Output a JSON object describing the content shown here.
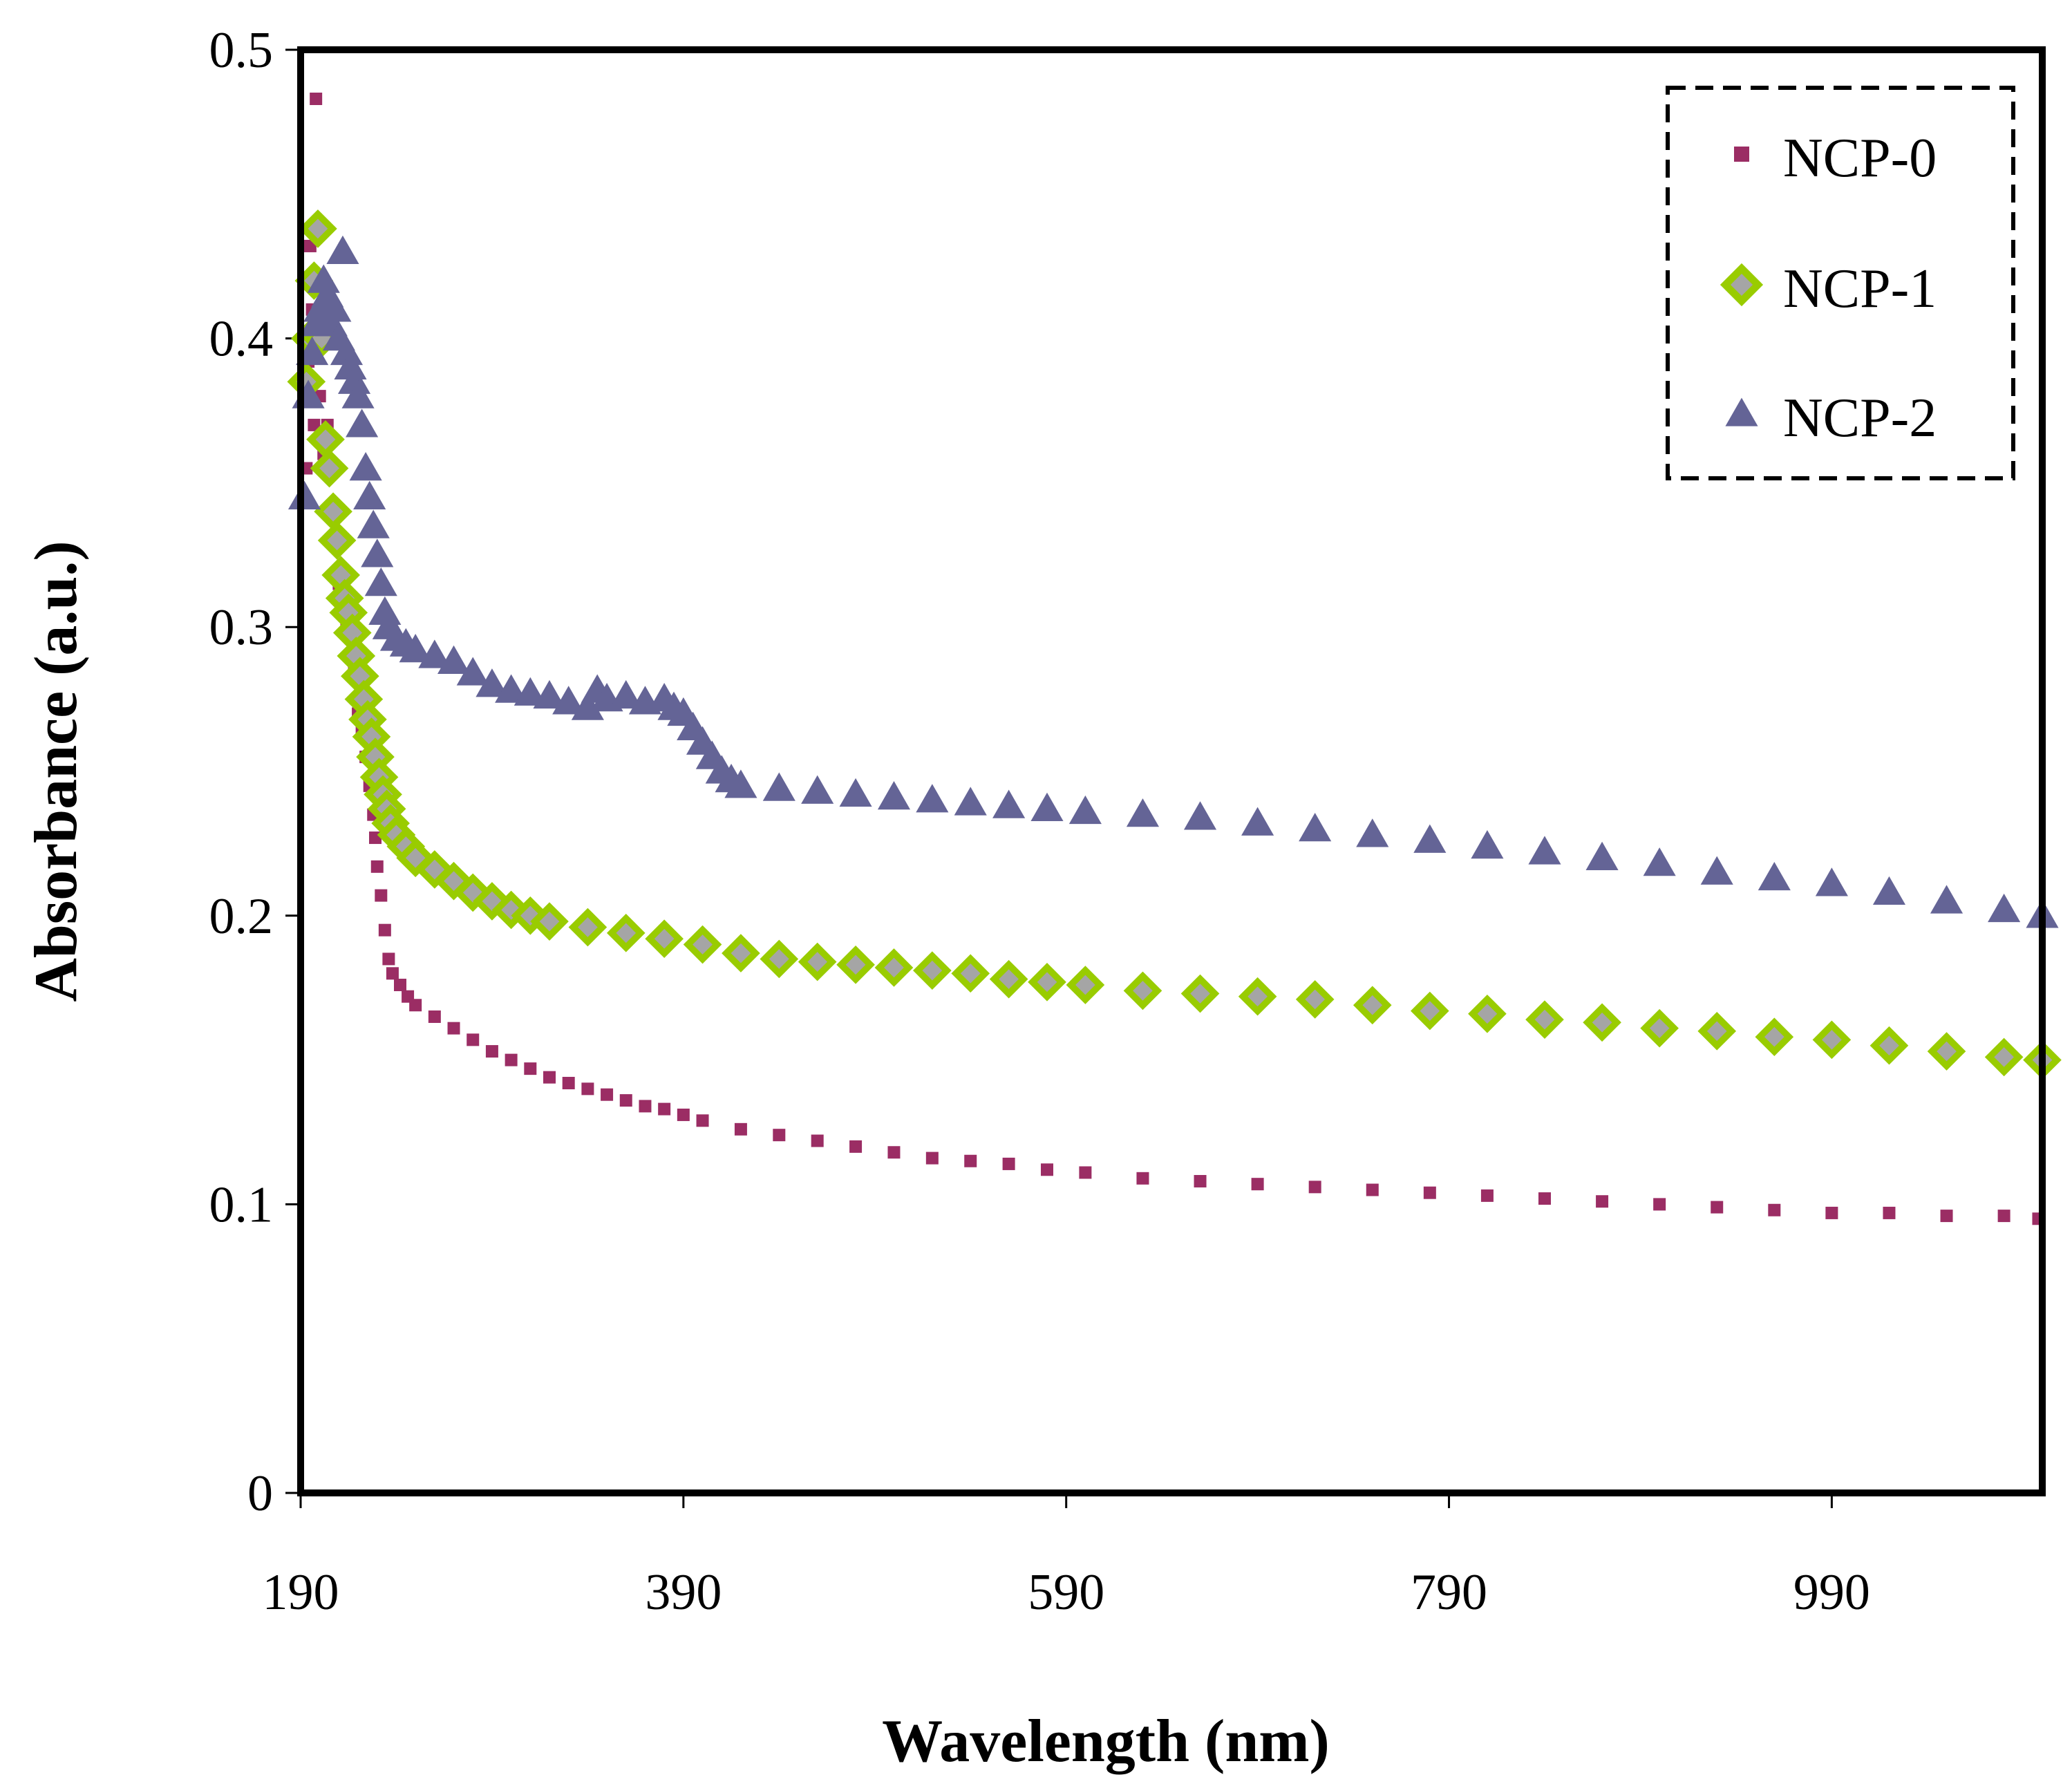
{
  "chart_data": {
    "type": "scatter",
    "title": "",
    "xlabel": "Wavelength (nm)",
    "ylabel": "Absorbance (a.u.)",
    "xlim": [
      190,
      1100
    ],
    "ylim": [
      0,
      0.5
    ],
    "xticks": [
      "190",
      "390",
      "590",
      "790",
      "990"
    ],
    "yticks": [
      "0",
      "0.1",
      "0.2",
      "0.3",
      "0.4",
      "0.5"
    ],
    "legend_position": "top-right",
    "series": [
      {
        "name": "NCP-0",
        "marker": "square",
        "color": "#9B2D64",
        "points": [
          [
            193,
            0.355
          ],
          [
            194,
            0.392
          ],
          [
            195,
            0.432
          ],
          [
            196,
            0.41
          ],
          [
            197,
            0.37
          ],
          [
            198,
            0.483
          ],
          [
            200,
            0.38
          ],
          [
            202,
            0.36
          ],
          [
            204,
            0.37
          ],
          [
            206,
            0.34
          ],
          [
            208,
            0.33
          ],
          [
            210,
            0.315
          ],
          [
            212,
            0.31
          ],
          [
            214,
            0.3
          ],
          [
            216,
            0.29
          ],
          [
            218,
            0.285
          ],
          [
            220,
            0.27
          ],
          [
            222,
            0.265
          ],
          [
            224,
            0.255
          ],
          [
            226,
            0.245
          ],
          [
            228,
            0.235
          ],
          [
            229,
            0.227
          ],
          [
            230,
            0.217
          ],
          [
            232,
            0.207
          ],
          [
            234,
            0.195
          ],
          [
            236,
            0.185
          ],
          [
            238,
            0.18
          ],
          [
            242,
            0.176
          ],
          [
            246,
            0.172
          ],
          [
            250,
            0.169
          ],
          [
            260,
            0.165
          ],
          [
            270,
            0.161
          ],
          [
            280,
            0.157
          ],
          [
            290,
            0.153
          ],
          [
            300,
            0.15
          ],
          [
            310,
            0.147
          ],
          [
            320,
            0.144
          ],
          [
            330,
            0.142
          ],
          [
            340,
            0.14
          ],
          [
            350,
            0.138
          ],
          [
            360,
            0.136
          ],
          [
            370,
            0.134
          ],
          [
            380,
            0.133
          ],
          [
            390,
            0.131
          ],
          [
            400,
            0.129
          ],
          [
            420,
            0.126
          ],
          [
            440,
            0.124
          ],
          [
            460,
            0.122
          ],
          [
            480,
            0.12
          ],
          [
            500,
            0.118
          ],
          [
            520,
            0.116
          ],
          [
            540,
            0.115
          ],
          [
            560,
            0.114
          ],
          [
            580,
            0.112
          ],
          [
            600,
            0.111
          ],
          [
            630,
            0.109
          ],
          [
            660,
            0.108
          ],
          [
            690,
            0.107
          ],
          [
            720,
            0.106
          ],
          [
            750,
            0.105
          ],
          [
            780,
            0.104
          ],
          [
            810,
            0.103
          ],
          [
            840,
            0.102
          ],
          [
            870,
            0.101
          ],
          [
            900,
            0.1
          ],
          [
            930,
            0.099
          ],
          [
            960,
            0.098
          ],
          [
            990,
            0.097
          ],
          [
            1020,
            0.097
          ],
          [
            1050,
            0.096
          ],
          [
            1080,
            0.096
          ],
          [
            1098,
            0.095
          ]
        ]
      },
      {
        "name": "NCP-1",
        "marker": "diamond",
        "color": "#99CC00",
        "points": [
          [
            193,
            0.385
          ],
          [
            195,
            0.4
          ],
          [
            197,
            0.42
          ],
          [
            199,
            0.438
          ],
          [
            201,
            0.4
          ],
          [
            203,
            0.365
          ],
          [
            205,
            0.355
          ],
          [
            207,
            0.34
          ],
          [
            209,
            0.33
          ],
          [
            211,
            0.318
          ],
          [
            213,
            0.31
          ],
          [
            215,
            0.305
          ],
          [
            217,
            0.298
          ],
          [
            219,
            0.29
          ],
          [
            221,
            0.283
          ],
          [
            223,
            0.275
          ],
          [
            225,
            0.268
          ],
          [
            227,
            0.262
          ],
          [
            229,
            0.255
          ],
          [
            231,
            0.248
          ],
          [
            233,
            0.242
          ],
          [
            235,
            0.237
          ],
          [
            237,
            0.232
          ],
          [
            240,
            0.228
          ],
          [
            245,
            0.224
          ],
          [
            250,
            0.22
          ],
          [
            260,
            0.216
          ],
          [
            270,
            0.212
          ],
          [
            280,
            0.208
          ],
          [
            290,
            0.205
          ],
          [
            300,
            0.202
          ],
          [
            310,
            0.2
          ],
          [
            320,
            0.198
          ],
          [
            340,
            0.196
          ],
          [
            360,
            0.194
          ],
          [
            380,
            0.192
          ],
          [
            400,
            0.19
          ],
          [
            420,
            0.187
          ],
          [
            440,
            0.185
          ],
          [
            460,
            0.184
          ],
          [
            480,
            0.183
          ],
          [
            500,
            0.182
          ],
          [
            520,
            0.181
          ],
          [
            540,
            0.18
          ],
          [
            560,
            0.178
          ],
          [
            580,
            0.177
          ],
          [
            600,
            0.176
          ],
          [
            630,
            0.174
          ],
          [
            660,
            0.173
          ],
          [
            690,
            0.172
          ],
          [
            720,
            0.171
          ],
          [
            750,
            0.169
          ],
          [
            780,
            0.167
          ],
          [
            810,
            0.166
          ],
          [
            840,
            0.164
          ],
          [
            870,
            0.163
          ],
          [
            900,
            0.161
          ],
          [
            930,
            0.16
          ],
          [
            960,
            0.158
          ],
          [
            990,
            0.157
          ],
          [
            1020,
            0.155
          ],
          [
            1050,
            0.153
          ],
          [
            1080,
            0.151
          ],
          [
            1100,
            0.15
          ]
        ]
      },
      {
        "name": "NCP-2",
        "marker": "triangle",
        "color": "#646496",
        "points": [
          [
            192,
            0.345
          ],
          [
            194,
            0.38
          ],
          [
            196,
            0.395
          ],
          [
            198,
            0.405
          ],
          [
            200,
            0.41
          ],
          [
            202,
            0.42
          ],
          [
            204,
            0.415
          ],
          [
            206,
            0.405
          ],
          [
            208,
            0.41
          ],
          [
            210,
            0.4
          ],
          [
            212,
            0.43
          ],
          [
            214,
            0.395
          ],
          [
            216,
            0.39
          ],
          [
            218,
            0.385
          ],
          [
            220,
            0.38
          ],
          [
            222,
            0.37
          ],
          [
            224,
            0.355
          ],
          [
            226,
            0.345
          ],
          [
            228,
            0.335
          ],
          [
            230,
            0.325
          ],
          [
            232,
            0.315
          ],
          [
            234,
            0.305
          ],
          [
            236,
            0.3
          ],
          [
            240,
            0.296
          ],
          [
            245,
            0.294
          ],
          [
            250,
            0.292
          ],
          [
            260,
            0.29
          ],
          [
            270,
            0.288
          ],
          [
            280,
            0.284
          ],
          [
            290,
            0.28
          ],
          [
            300,
            0.278
          ],
          [
            310,
            0.277
          ],
          [
            320,
            0.276
          ],
          [
            330,
            0.274
          ],
          [
            340,
            0.272
          ],
          [
            345,
            0.278
          ],
          [
            350,
            0.275
          ],
          [
            360,
            0.276
          ],
          [
            370,
            0.274
          ],
          [
            380,
            0.275
          ],
          [
            385,
            0.272
          ],
          [
            390,
            0.27
          ],
          [
            395,
            0.265
          ],
          [
            400,
            0.26
          ],
          [
            405,
            0.255
          ],
          [
            410,
            0.25
          ],
          [
            415,
            0.247
          ],
          [
            420,
            0.245
          ],
          [
            440,
            0.244
          ],
          [
            460,
            0.243
          ],
          [
            480,
            0.242
          ],
          [
            500,
            0.241
          ],
          [
            520,
            0.24
          ],
          [
            540,
            0.239
          ],
          [
            560,
            0.238
          ],
          [
            580,
            0.237
          ],
          [
            600,
            0.236
          ],
          [
            630,
            0.235
          ],
          [
            660,
            0.234
          ],
          [
            690,
            0.232
          ],
          [
            720,
            0.23
          ],
          [
            750,
            0.228
          ],
          [
            780,
            0.226
          ],
          [
            810,
            0.224
          ],
          [
            840,
            0.222
          ],
          [
            870,
            0.22
          ],
          [
            900,
            0.218
          ],
          [
            930,
            0.215
          ],
          [
            960,
            0.213
          ],
          [
            990,
            0.211
          ],
          [
            1020,
            0.208
          ],
          [
            1050,
            0.205
          ],
          [
            1080,
            0.202
          ],
          [
            1100,
            0.2
          ]
        ]
      }
    ]
  }
}
